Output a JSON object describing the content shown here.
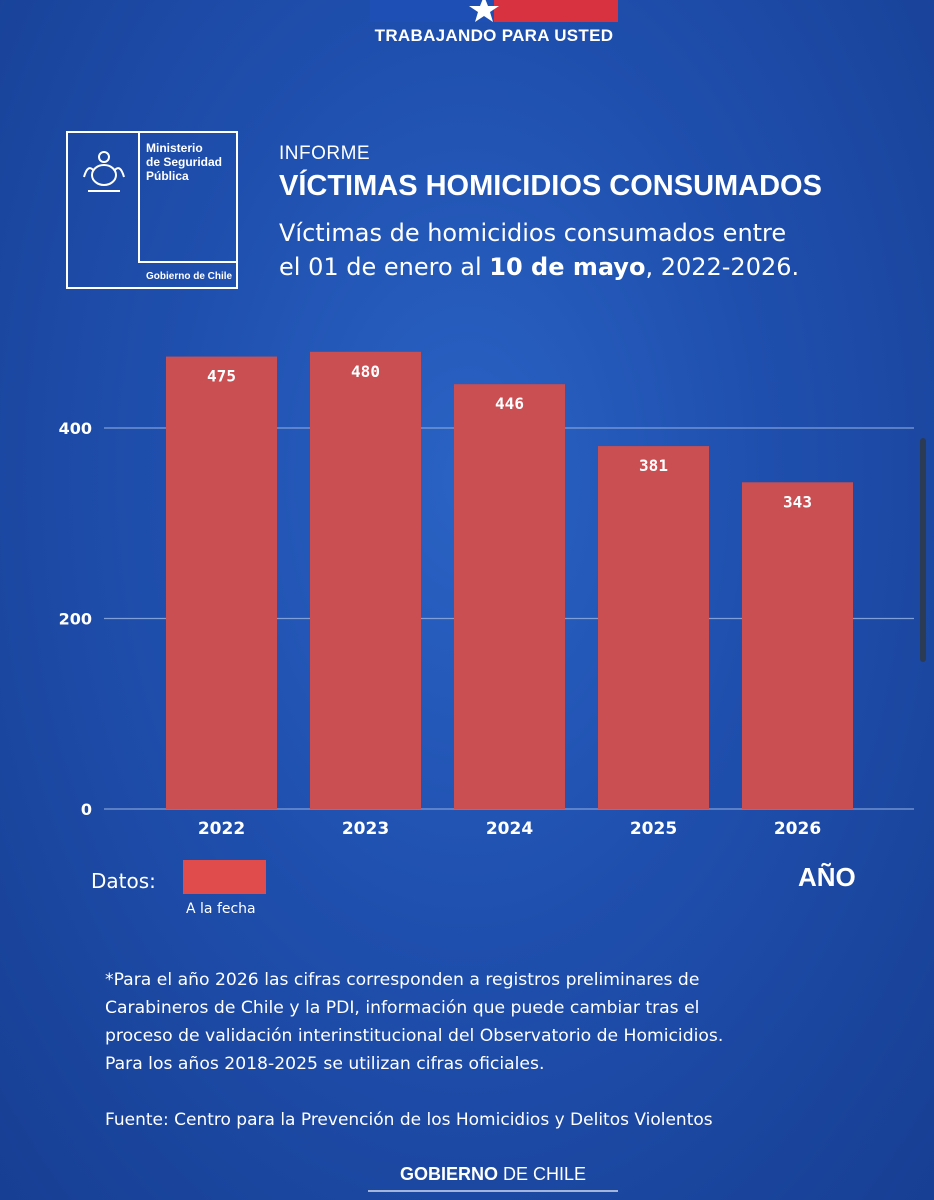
{
  "header": {
    "tagline": "TRABAJANDO PARA USTED",
    "ministry_lines": [
      "Ministerio",
      "de Seguridad",
      "Pública"
    ],
    "gobierno_logo": "Gobierno de Chile",
    "informe": "INFORME",
    "title": "VÍCTIMAS HOMICIDIOS CONSUMADOS",
    "subtitle_line1": "Víctimas de homicidios consumados entre",
    "subtitle_line2_prefix": "el 01 de enero al ",
    "subtitle_line2_bold": "10 de mayo",
    "subtitle_line2_suffix": ", 2022-2026."
  },
  "colors": {
    "bar": "#c94f53",
    "legend_swatch": "#e04b4b",
    "gridline": "#7f9fd8"
  },
  "chart_data": {
    "type": "bar",
    "categories": [
      "2022",
      "2023",
      "2024",
      "2025",
      "2026"
    ],
    "values": [
      475,
      480,
      446,
      381,
      343
    ],
    "y_ticks": [
      "0",
      "200",
      "400"
    ],
    "ylim": [
      0,
      480
    ],
    "xlabel": "AÑO",
    "ylabel": "",
    "legend": {
      "prefix": "Datos:",
      "entry": "A la fecha",
      "placement": "bottom-left"
    },
    "grid": true
  },
  "notes": {
    "lines": [
      "*Para el año 2026 las cifras corresponden a registros preliminares de",
      "Carabineros de Chile y la PDI, información que puede cambiar tras el",
      "proceso de validación interinstitucional del Observatorio de Homicidios.",
      "Para los años 2018-2025 se utilizan cifras oficiales."
    ],
    "source": "Fuente:  Centro para la Prevención de los Homicidios y Delitos Violentos"
  },
  "footer": {
    "bold": "GOBIERNO",
    "rest": " DE CHILE"
  }
}
